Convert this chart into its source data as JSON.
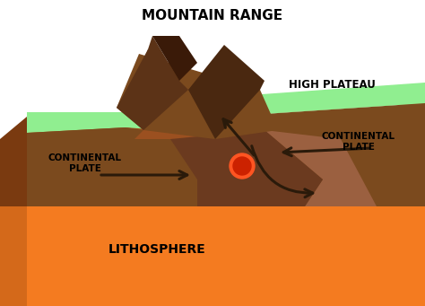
{
  "bg_color": "#ffffff",
  "orange_main": "#F47B20",
  "orange_dark": "#D4691A",
  "orange_side": "#C85E10",
  "brown_dark": "#5C3317",
  "brown_med": "#7B4A1E",
  "brown_light": "#9B6040",
  "brown_collision": "#6B3A1F",
  "green_color": "#90EE90",
  "red_color": "#CC2200",
  "arrow_color": "#2A1A0A",
  "labels": {
    "mountain_range": "MOUNTAIN RANGE",
    "high_plateau": "HIGH PLATEAU",
    "cont_left": "CONTINENTAL\nPLATE",
    "cont_right": "CONTINENTAL\nPLATE",
    "lithosphere": "LITHOSPHERE"
  }
}
